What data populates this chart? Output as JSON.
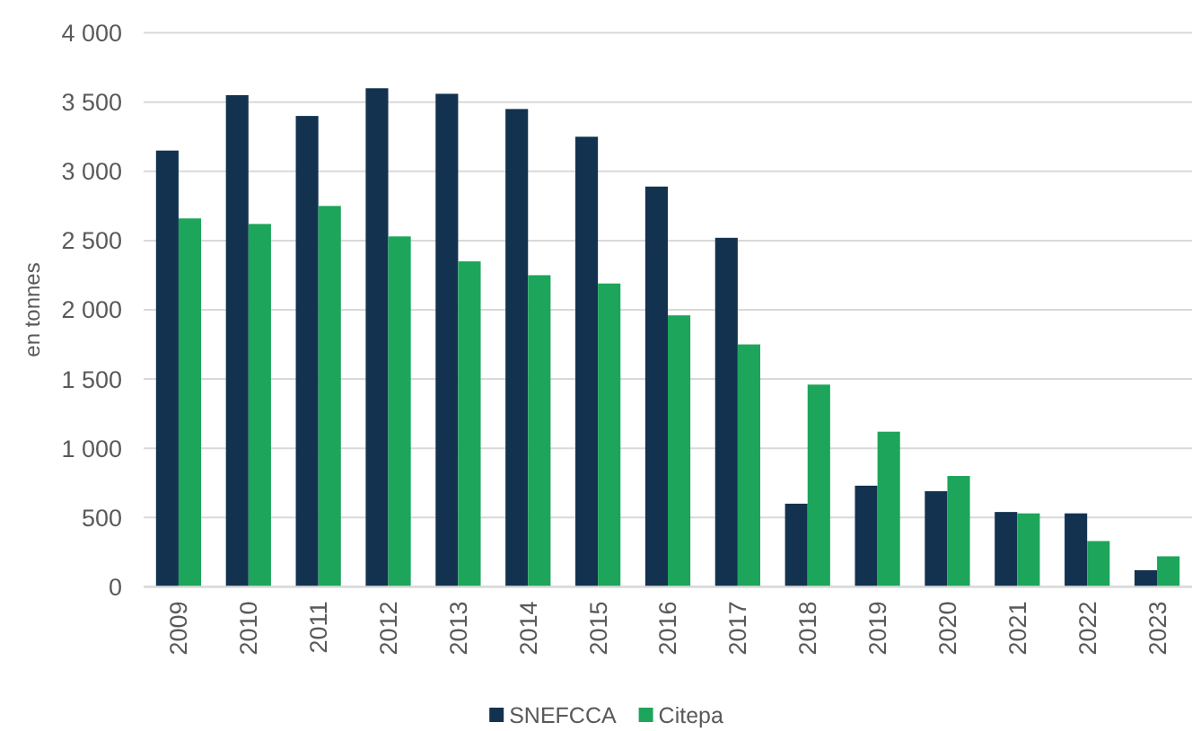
{
  "chart_data": {
    "type": "bar",
    "ylabel": "en tonnes",
    "categories": [
      "2009",
      "2010",
      "2011",
      "2012",
      "2013",
      "2014",
      "2015",
      "2016",
      "2017",
      "2018",
      "2019",
      "2020",
      "2021",
      "2022",
      "2023"
    ],
    "series": [
      {
        "name": "SNEFCCA",
        "color": "#12324f",
        "values": [
          3150,
          3550,
          3400,
          3600,
          3560,
          3450,
          3250,
          2890,
          2520,
          600,
          730,
          690,
          540,
          530,
          120
        ]
      },
      {
        "name": "Citepa",
        "color": "#1ca55b",
        "values": [
          2660,
          2620,
          2750,
          2530,
          2350,
          2250,
          2190,
          1960,
          1750,
          1460,
          1120,
          800,
          530,
          330,
          220
        ]
      }
    ],
    "ylim": [
      0,
      4000
    ],
    "yticks": [
      0,
      500,
      {
        "value": 1000,
        "label": "1 000"
      },
      {
        "value": 1500,
        "label": "1 500"
      },
      {
        "value": 2000,
        "label": "2 000"
      },
      {
        "value": 2500,
        "label": "2 500"
      },
      {
        "value": 3000,
        "label": "3 000"
      },
      {
        "value": 3500,
        "label": "3 500"
      },
      {
        "value": 4000,
        "label": "4 000"
      }
    ],
    "grid": "y",
    "legend": "bottom"
  }
}
